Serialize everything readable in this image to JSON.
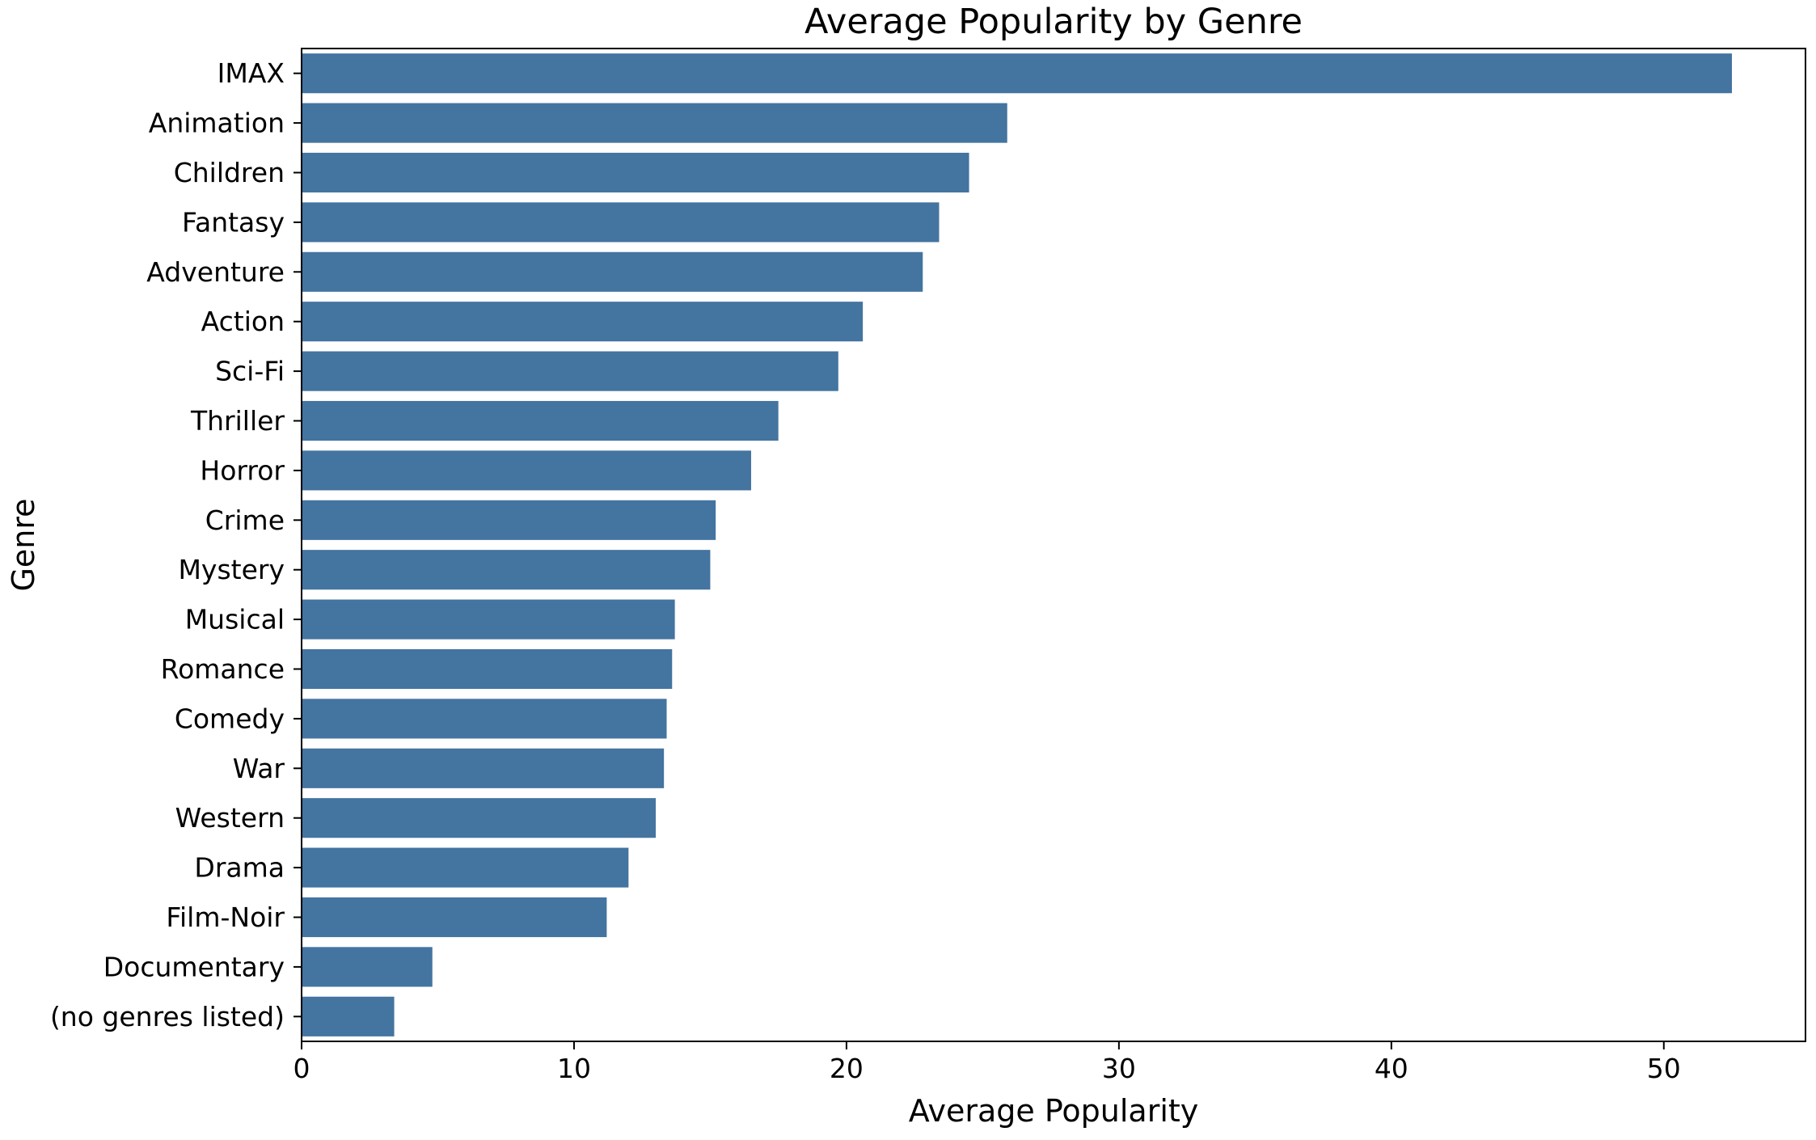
{
  "chart_data": {
    "type": "bar",
    "orientation": "horizontal",
    "title": "Average Popularity by Genre",
    "xlabel": "Average Popularity",
    "ylabel": "Genre",
    "xlim": [
      0,
      55.2
    ],
    "xticks": [
      0,
      10,
      20,
      30,
      40,
      50
    ],
    "grid": false,
    "bar_color": "#4474a0",
    "categories": [
      "IMAX",
      "Animation",
      "Children",
      "Fantasy",
      "Adventure",
      "Action",
      "Sci-Fi",
      "Thriller",
      "Horror",
      "Crime",
      "Mystery",
      "Musical",
      "Romance",
      "Comedy",
      "War",
      "Western",
      "Drama",
      "Film-Noir",
      "Documentary",
      "(no genres listed)"
    ],
    "values": [
      52.5,
      25.9,
      24.5,
      23.4,
      22.8,
      20.6,
      19.7,
      17.5,
      16.5,
      15.2,
      15.0,
      13.7,
      13.6,
      13.4,
      13.3,
      13.0,
      12.0,
      11.2,
      4.8,
      3.4
    ]
  }
}
